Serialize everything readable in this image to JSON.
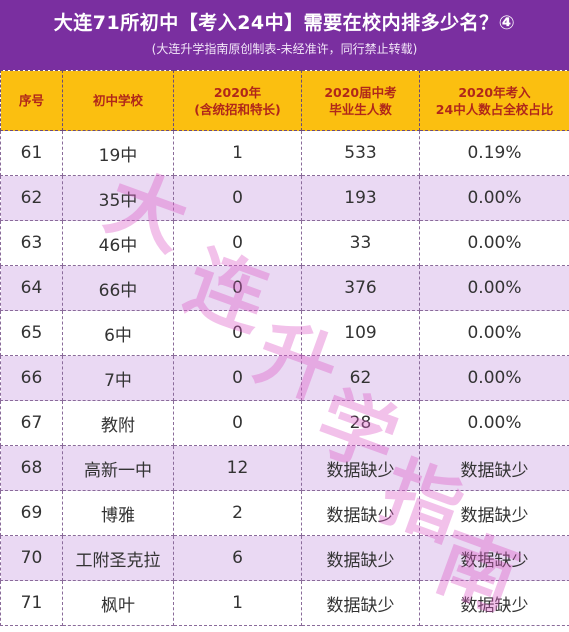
{
  "header": {
    "title": "大连71所初中【考入24中】需要在校内排多少名？④",
    "subtitle": "(大连升学指南原创制表-未经准许，同行禁止转载)"
  },
  "table": {
    "headers": [
      "序号",
      "初中学校",
      "2020年\n(含统招和特长)",
      "2020届中考\n毕业生人数",
      "2020年考入\n24中人数占全校占比"
    ],
    "rows": [
      [
        "61",
        "19中",
        "1",
        "533",
        "0.19%"
      ],
      [
        "62",
        "35中",
        "0",
        "193",
        "0.00%"
      ],
      [
        "63",
        "46中",
        "0",
        "33",
        "0.00%"
      ],
      [
        "64",
        "66中",
        "0",
        "376",
        "0.00%"
      ],
      [
        "65",
        "6中",
        "0",
        "109",
        "0.00%"
      ],
      [
        "66",
        "7中",
        "0",
        "62",
        "0.00%"
      ],
      [
        "67",
        "教附",
        "0",
        "28",
        "0.00%"
      ],
      [
        "68",
        "高新一中",
        "12",
        "数据缺少",
        "数据缺少"
      ],
      [
        "69",
        "博雅",
        "2",
        "数据缺少",
        "数据缺少"
      ],
      [
        "70",
        "工附圣克拉",
        "6",
        "数据缺少",
        "数据缺少"
      ],
      [
        "71",
        "枫叶",
        "1",
        "数据缺少",
        "数据缺少"
      ]
    ]
  },
  "watermark": {
    "chars": [
      "大",
      "连",
      "升",
      "学",
      "指",
      "南"
    ]
  },
  "colors": {
    "header_bg": "#7a2fa0",
    "column_header_bg": "#fbbf10",
    "column_header_text": "#b0271a",
    "stripe": "#ead9f3"
  }
}
